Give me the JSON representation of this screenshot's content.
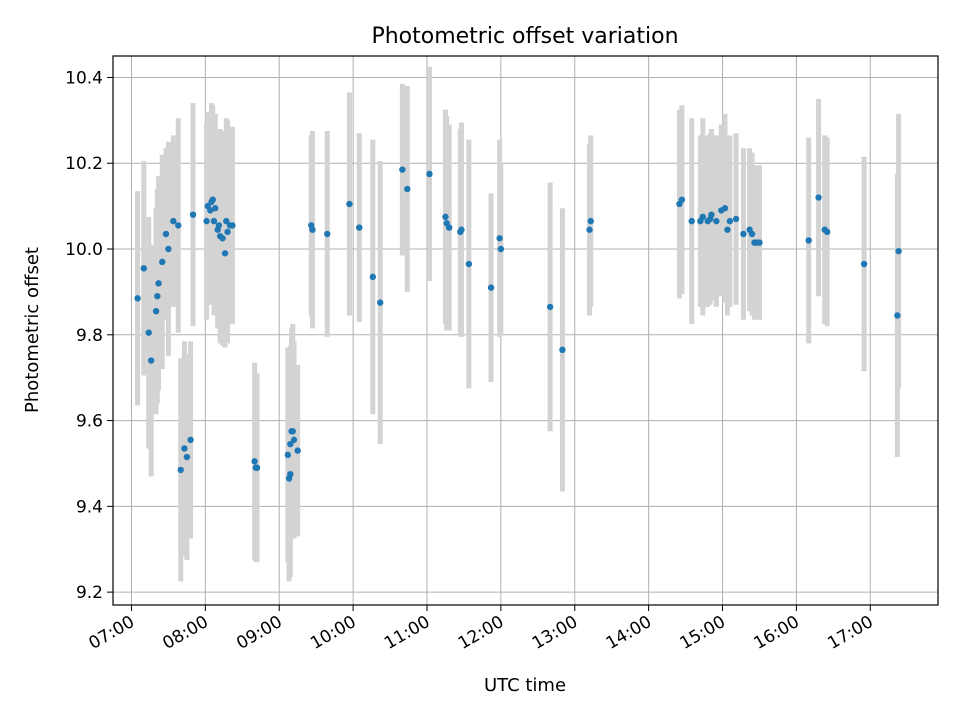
{
  "chart_data": {
    "type": "scatter",
    "title": "Photometric offset variation",
    "xlabel": "UTC time",
    "ylabel": "Photometric offset",
    "xlim": [
      "06:45",
      "17:55"
    ],
    "ylim": [
      9.17,
      10.45
    ],
    "x_ticks": [
      "07:00",
      "08:00",
      "09:00",
      "10:00",
      "11:00",
      "12:00",
      "13:00",
      "14:00",
      "15:00",
      "16:00",
      "17:00"
    ],
    "y_ticks": [
      9.2,
      9.4,
      9.6,
      9.8,
      10.0,
      10.2,
      10.4
    ],
    "y_tick_labels": [
      "9.2",
      "9.4",
      "9.6",
      "9.8",
      "10.0",
      "10.2",
      "10.4"
    ],
    "grid": true,
    "colors": {
      "point": "#1f77b4",
      "errorbar": "#d3d3d3"
    },
    "series": [
      {
        "x": [
          "07:05",
          "07:10",
          "07:14",
          "07:16",
          "07:20",
          "07:21",
          "07:22",
          "07:25",
          "07:28",
          "07:30",
          "07:34",
          "07:38",
          "07:40",
          "07:43",
          "07:45",
          "07:48",
          "07:50",
          "08:01",
          "08:02",
          "08:04",
          "08:05",
          "08:06",
          "08:07",
          "08:08",
          "08:10",
          "08:11",
          "08:12",
          "08:14",
          "08:16",
          "08:17",
          "08:18",
          "08:20",
          "08:22",
          "08:40",
          "08:41",
          "08:42",
          "09:07",
          "09:08",
          "09:09",
          "09:09",
          "09:10",
          "09:11",
          "09:12",
          "09:15",
          "09:26",
          "09:27",
          "09:39",
          "09:57",
          "10:05",
          "10:16",
          "10:22",
          "10:40",
          "10:44",
          "11:02",
          "11:15",
          "11:16",
          "11:18",
          "11:27",
          "11:28",
          "11:34",
          "11:52",
          "11:59",
          "12:00",
          "12:40",
          "12:50",
          "13:12",
          "13:13",
          "14:25",
          "14:27",
          "14:35",
          "14:42",
          "14:44",
          "14:48",
          "14:50",
          "14:51",
          "14:55",
          "14:59",
          "15:02",
          "15:04",
          "15:06",
          "15:11",
          "15:17",
          "15:22",
          "15:24",
          "15:26",
          "15:28",
          "15:30",
          "16:10",
          "16:18",
          "16:23",
          "16:25",
          "16:55",
          "17:22",
          "17:23"
        ],
        "y": [
          9.885,
          9.955,
          9.805,
          9.74,
          9.855,
          9.89,
          9.92,
          9.97,
          10.035,
          10.0,
          10.065,
          10.055,
          9.485,
          9.535,
          9.515,
          9.555,
          10.08,
          10.065,
          10.1,
          10.09,
          10.11,
          10.115,
          10.065,
          10.095,
          10.045,
          10.055,
          10.03,
          10.025,
          9.99,
          10.065,
          10.04,
          10.055,
          10.055,
          9.505,
          9.49,
          9.49,
          9.52,
          9.465,
          9.475,
          9.545,
          9.575,
          9.575,
          9.555,
          9.53,
          10.055,
          10.045,
          10.035,
          10.105,
          10.05,
          9.935,
          9.875,
          10.185,
          10.14,
          10.175,
          10.075,
          10.06,
          10.05,
          10.04,
          10.045,
          9.965,
          9.91,
          10.025,
          10.0,
          9.865,
          9.765,
          10.045,
          10.065,
          10.105,
          10.115,
          10.065,
          10.065,
          10.075,
          10.065,
          10.07,
          10.08,
          10.065,
          10.09,
          10.095,
          10.045,
          10.065,
          10.07,
          10.035,
          10.045,
          10.035,
          10.015,
          10.015,
          10.015,
          10.02,
          10.12,
          10.045,
          10.04,
          9.965,
          9.845,
          9.995
        ],
        "err": [
          0.25,
          0.25,
          0.27,
          0.27,
          0.24,
          0.25,
          0.25,
          0.25,
          0.2,
          0.25,
          0.2,
          0.25,
          0.26,
          0.25,
          0.24,
          0.23,
          0.26,
          0.23,
          0.22,
          0.22,
          0.23,
          0.22,
          0.22,
          0.22,
          0.23,
          0.22,
          0.25,
          0.25,
          0.22,
          0.24,
          0.26,
          0.23,
          0.23,
          0.23,
          0.22,
          0.22,
          0.25,
          0.24,
          0.24,
          0.23,
          0.24,
          0.25,
          0.23,
          0.2,
          0.21,
          0.23,
          0.24,
          0.26,
          0.22,
          0.32,
          0.33,
          0.2,
          0.24,
          0.25,
          0.25,
          0.25,
          0.24,
          0.24,
          0.25,
          0.29,
          0.22,
          0.23,
          0.2,
          0.29,
          0.33,
          0.2,
          0.2,
          0.22,
          0.22,
          0.24,
          0.2,
          0.23,
          0.2,
          0.2,
          0.2,
          0.2,
          0.2,
          0.22,
          0.2,
          0.2,
          0.2,
          0.2,
          0.19,
          0.19,
          0.18,
          0.18,
          0.18,
          0.24,
          0.23,
          0.22,
          0.22,
          0.25,
          0.33,
          0.32
        ]
      }
    ]
  }
}
